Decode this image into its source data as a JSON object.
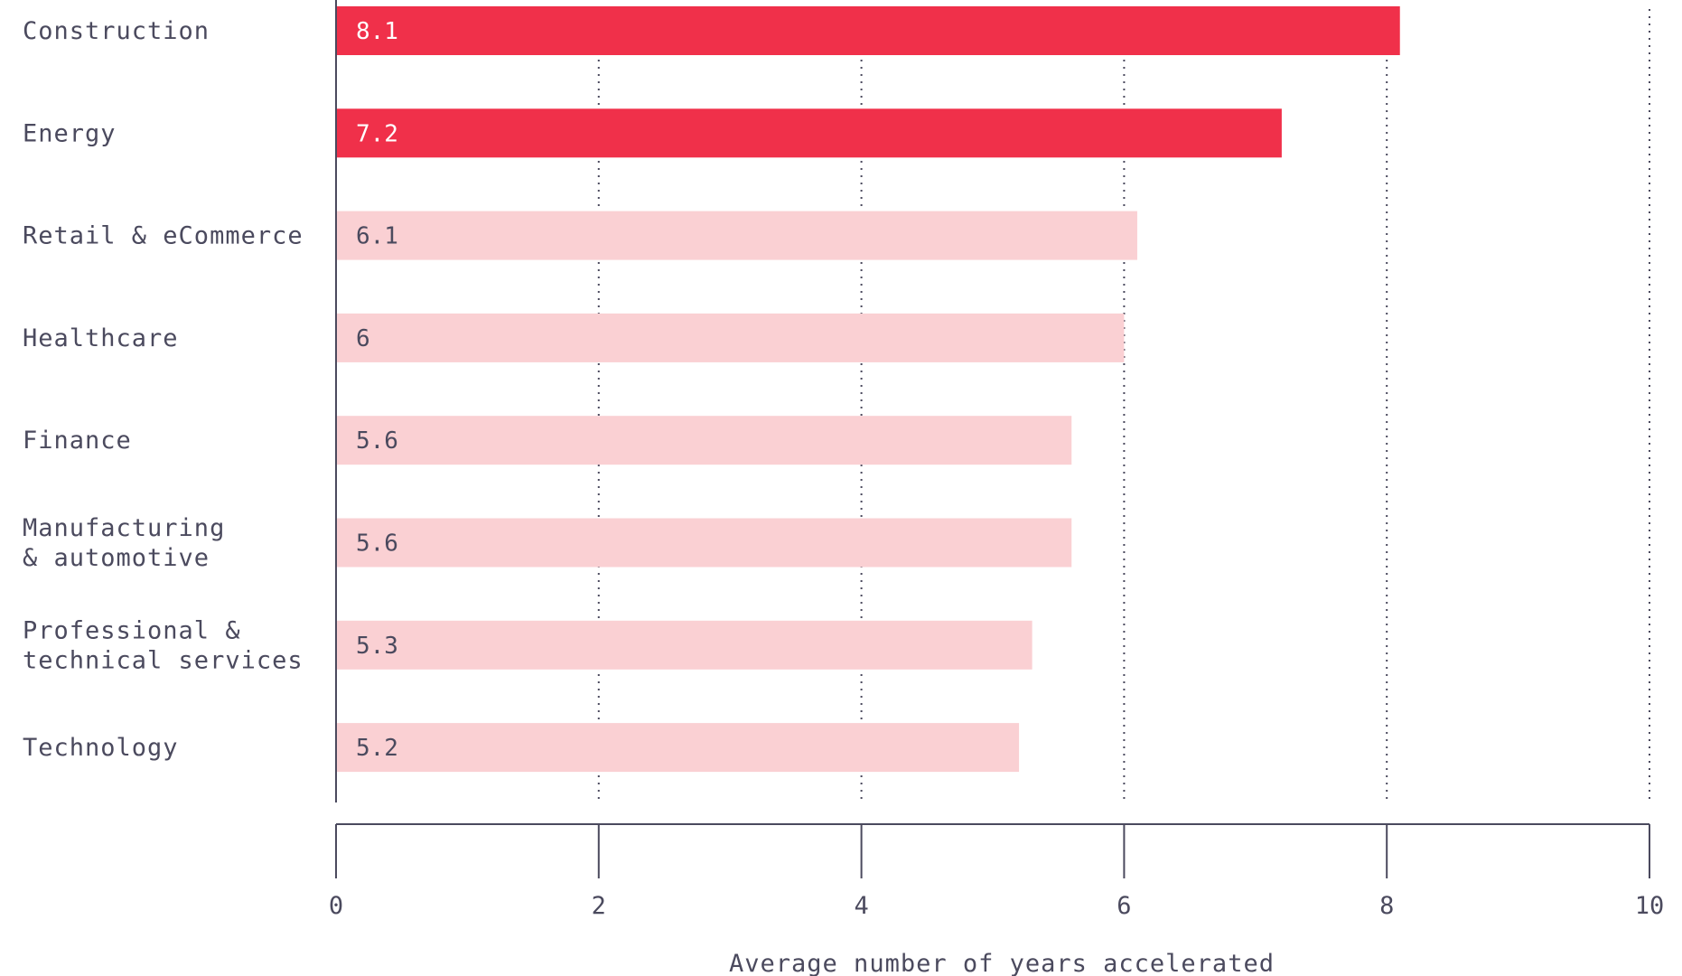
{
  "chart_data": {
    "type": "bar",
    "orientation": "horizontal",
    "categories": [
      "Construction",
      "Energy",
      "Retail & eCommerce",
      "Healthcare",
      "Finance",
      "Manufacturing\n& automotive",
      "Professional &\ntechnical services",
      "Technology"
    ],
    "values": [
      8.1,
      7.2,
      6.1,
      6,
      5.6,
      5.6,
      5.3,
      5.2
    ],
    "value_labels": [
      "8.1",
      "7.2",
      "6.1",
      "6",
      "5.6",
      "5.6",
      "5.3",
      "5.2"
    ],
    "highlighted": [
      true,
      true,
      false,
      false,
      false,
      false,
      false,
      false
    ],
    "xlabel": "Average number of years accelerated",
    "ylabel": "",
    "title": "",
    "xlim": [
      0,
      10
    ],
    "xticks": [
      0,
      2,
      4,
      6,
      8,
      10
    ],
    "grid": "vertical dotted",
    "colors": {
      "highlight": "#f0304a",
      "normal": "#fad0d3",
      "text": "#4b4a5e",
      "axis": "#4b4a5e",
      "label_on_highlight": "#ffffff",
      "label_on_normal": "#4b4a5e"
    }
  }
}
